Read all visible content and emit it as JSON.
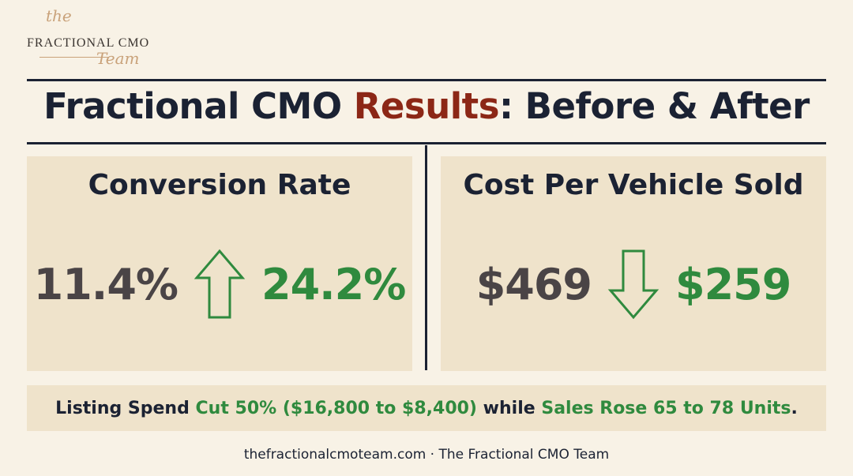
{
  "logo": {
    "the": "the",
    "main": "FRACTIONAL CMO",
    "team": "Team"
  },
  "title": {
    "part1": "Fractional CMO ",
    "accent": "Results",
    "part2": ": Before & After"
  },
  "panels": [
    {
      "title": "Conversion Rate",
      "before": "11.4%",
      "after": "24.2%",
      "direction": "up-arrow-icon"
    },
    {
      "title": "Cost Per Vehicle Sold",
      "before": "$469",
      "after": "$259",
      "direction": "down-arrow-icon"
    }
  ],
  "summary": {
    "seg1": "Listing Spend ",
    "seg2": "Cut 50% ($16,800 to $8,400)",
    "seg3": " while ",
    "seg4": "Sales Rose 65 to 78 Units",
    "seg5": "."
  },
  "credit": "thefractionalcmoteam.com · The Fractional CMO Team",
  "colors": {
    "navy": "#1b2233",
    "accent_red": "#8c2716",
    "green": "#2f8a3e",
    "gray": "#4a4446",
    "background": "#f8f2e6",
    "panel": "#efe3cb"
  }
}
